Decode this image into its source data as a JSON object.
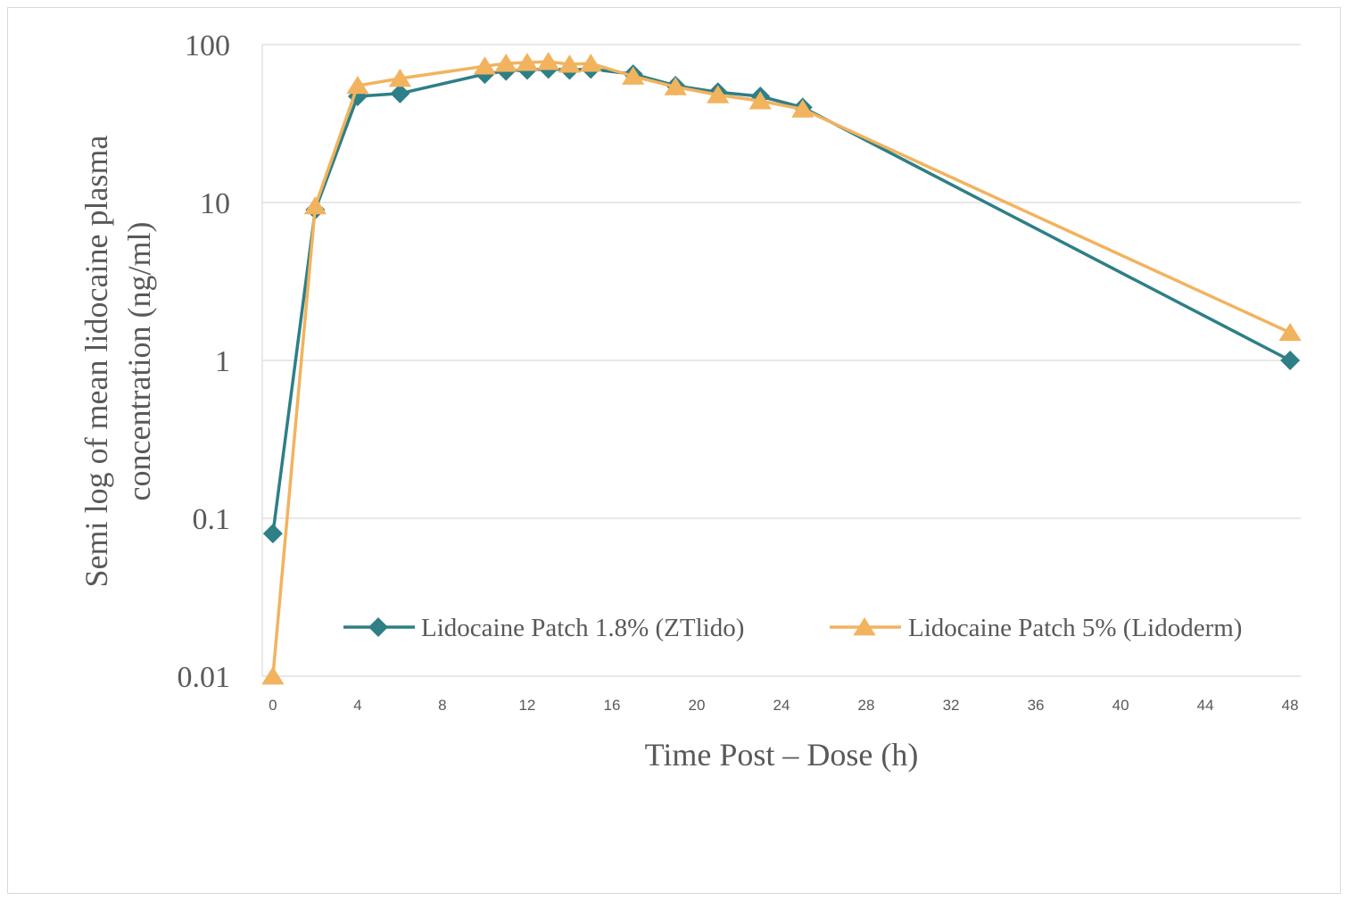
{
  "chart_data": {
    "type": "line",
    "title": "",
    "xlabel": "Time Post – Dose (h)",
    "ylabel_lines": [
      "Semi log of mean lidocaine plasma",
      "concentration (ng/ml)"
    ],
    "yscale": "log",
    "ylim": [
      0.01,
      100
    ],
    "yticks": [
      0.01,
      0.1,
      1,
      10,
      100
    ],
    "ytick_labels": [
      "0.01",
      "0.1",
      "1",
      "10",
      "100"
    ],
    "xticks": [
      0,
      4,
      8,
      12,
      16,
      20,
      24,
      28,
      32,
      36,
      40,
      44,
      48
    ],
    "xtick_labels": [
      "0",
      "4",
      "8",
      "12",
      "16",
      "20",
      "24",
      "28",
      "32",
      "36",
      "40",
      "44",
      "48"
    ],
    "xlim": [
      -0.5,
      48.5
    ],
    "grid": true,
    "legend_position": "lower-right",
    "series": [
      {
        "name": "Lidocaine Patch 1.8% (ZTlido)",
        "color": "#2e7f86",
        "marker": "diamond",
        "x": [
          0,
          2,
          4,
          6,
          10,
          11,
          12,
          13,
          14,
          15,
          17,
          19,
          21,
          23,
          25,
          48
        ],
        "y": [
          0.08,
          9,
          47,
          49,
          65,
          68,
          69,
          70,
          69,
          70,
          65,
          55,
          50,
          47,
          40,
          1.0
        ]
      },
      {
        "name": "Lidocaine Patch 5% (Lidoderm)",
        "color": "#f2b35e",
        "marker": "triangle",
        "x": [
          0,
          2,
          4,
          6,
          10,
          11,
          12,
          13,
          14,
          15,
          17,
          19,
          21,
          23,
          25,
          48
        ],
        "y": [
          0.01,
          9.5,
          55,
          61,
          73,
          76,
          77,
          78,
          75,
          76,
          63,
          54,
          48,
          44,
          39,
          1.5
        ]
      }
    ]
  }
}
